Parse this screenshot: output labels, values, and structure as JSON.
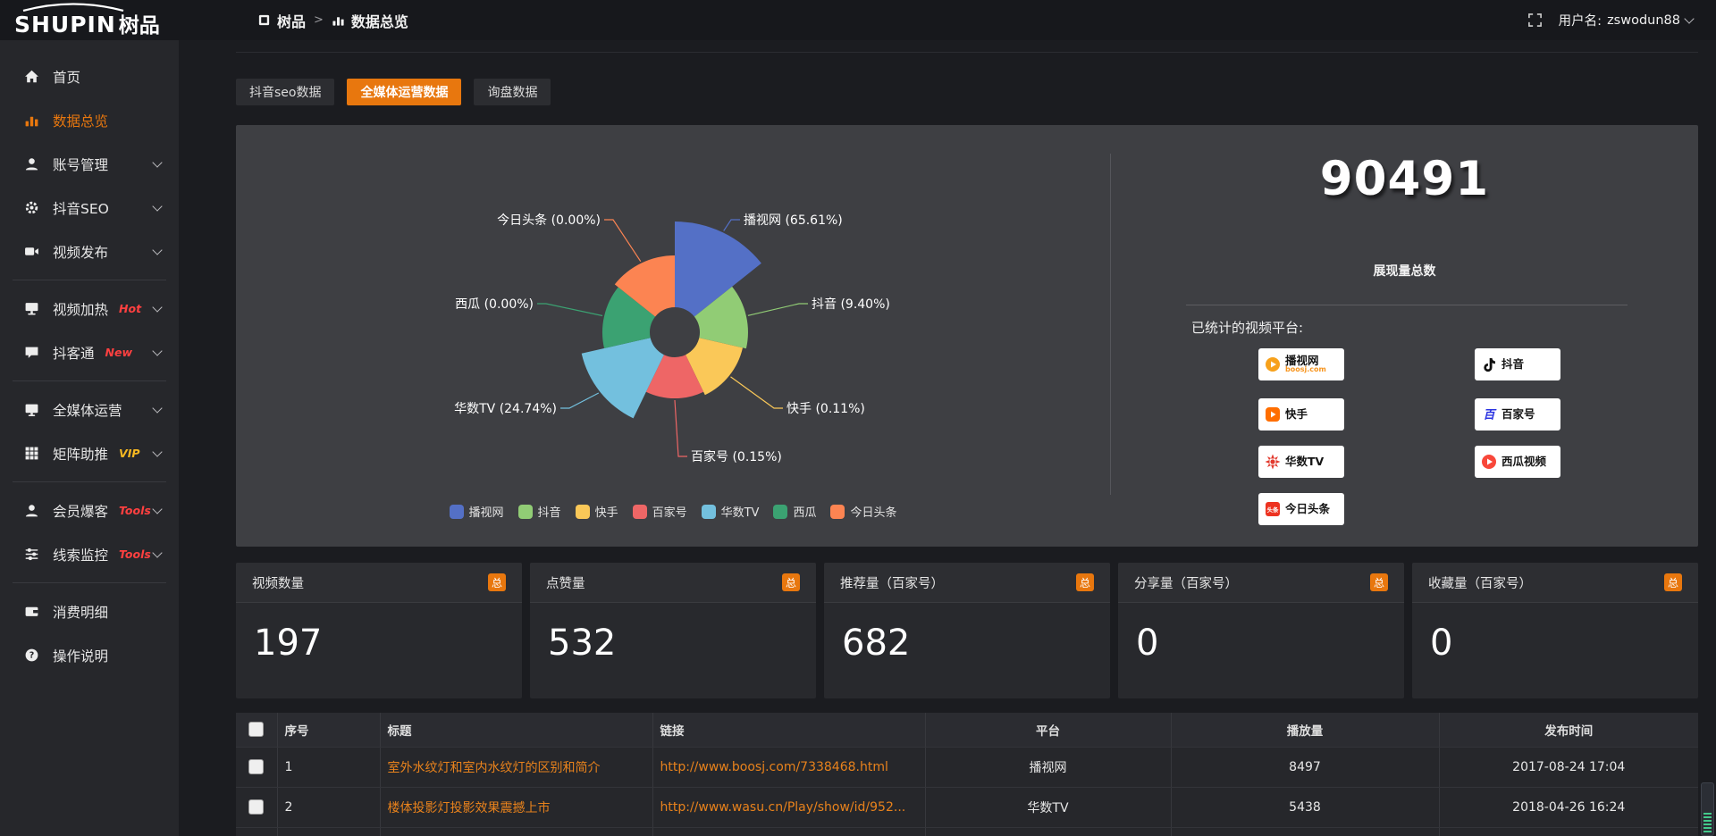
{
  "brand": {
    "logo_en": "SHUPIN",
    "logo_cn": "树品"
  },
  "header": {
    "breadcrumb": [
      {
        "label": "树品",
        "icon": "doc"
      },
      {
        "label": "数据总览",
        "icon": "chart"
      }
    ],
    "separator": ">",
    "username_label": "用户名:",
    "username": "zswodun88"
  },
  "sidebar": {
    "items": [
      {
        "label": "首页",
        "icon": "home"
      },
      {
        "label": "数据总览",
        "icon": "chart",
        "active": true
      },
      {
        "label": "账号管理",
        "icon": "user",
        "chevron": true
      },
      {
        "label": "抖音SEO",
        "icon": "gear",
        "chevron": true
      },
      {
        "label": "视频发布",
        "icon": "video",
        "chevron": true
      },
      {
        "divider": true
      },
      {
        "label": "视频加热",
        "icon": "heat",
        "badge": "Hot",
        "badge_color": "#ff4040",
        "chevron": true
      },
      {
        "label": "抖客通",
        "icon": "chat",
        "badge": "New",
        "badge_color": "#ff4040",
        "chevron": true
      },
      {
        "divider": true
      },
      {
        "label": "全媒体运营",
        "icon": "monitor",
        "chevron": true
      },
      {
        "label": "矩阵助推",
        "icon": "grid",
        "badge": "VIP",
        "badge_color": "#f6b821",
        "chevron": true
      },
      {
        "divider": true
      },
      {
        "label": "会员爆客",
        "icon": "user",
        "badge": "Tools",
        "badge_color": "#ff4040",
        "chevron": true
      },
      {
        "label": "线索监控",
        "icon": "sliders",
        "badge": "Tools",
        "badge_color": "#ff4040",
        "chevron": true
      },
      {
        "divider": true
      },
      {
        "label": "消费明细",
        "icon": "wallet"
      },
      {
        "label": "操作说明",
        "icon": "help"
      }
    ]
  },
  "tabs": [
    {
      "label": "抖音seo数据",
      "active": false
    },
    {
      "label": "全媒体运营数据",
      "active": true
    },
    {
      "label": "询盘数据",
      "active": false
    }
  ],
  "chart_data": {
    "type": "pie",
    "variant": "nightingale-rose-donut",
    "series": [
      {
        "name": "播视网",
        "pct": "65.61"
      },
      {
        "name": "抖音",
        "pct": "9.40"
      },
      {
        "name": "快手",
        "pct": "0.11"
      },
      {
        "name": "百家号",
        "pct": "0.15"
      },
      {
        "name": "华数TV",
        "pct": "24.74"
      },
      {
        "name": "西瓜",
        "pct": "0.00"
      },
      {
        "name": "今日头条",
        "pct": "0.00"
      }
    ],
    "colors": [
      "#5470c6",
      "#91cc75",
      "#fac858",
      "#ee6666",
      "#73c0de",
      "#3ba272",
      "#fc8452"
    ],
    "label_format": "{name} ({pct}%)",
    "legend": [
      "播视网",
      "抖音",
      "快手",
      "百家号",
      "华数TV",
      "西瓜",
      "今日头条"
    ],
    "legend_position": "bottom"
  },
  "summary": {
    "total_value": "90491",
    "total_label": "展现量总数",
    "platforms_label": "已统计的视频平台:",
    "platforms": [
      {
        "name": "播视网",
        "sub": "boosj.com",
        "logo": "boosj"
      },
      {
        "name": "快手",
        "logo": "kuaishou"
      },
      {
        "name": "华数TV",
        "logo": "wasu"
      },
      {
        "name": "今日头条",
        "logo": "toutiao"
      },
      {
        "name": "抖音",
        "logo": "douyin"
      },
      {
        "name": "百家号",
        "logo": "baijia"
      },
      {
        "name": "西瓜视频",
        "logo": "xigua"
      }
    ]
  },
  "stats": [
    {
      "title": "视频数量",
      "badge": "总",
      "value": "197"
    },
    {
      "title": "点赞量",
      "badge": "总",
      "value": "532"
    },
    {
      "title": "推荐量（百家号）",
      "badge": "总",
      "value": "682"
    },
    {
      "title": "分享量（百家号）",
      "badge": "总",
      "value": "0"
    },
    {
      "title": "收藏量（百家号）",
      "badge": "总",
      "value": "0"
    }
  ],
  "table": {
    "columns": [
      "序号",
      "标题",
      "链接",
      "平台",
      "播放量",
      "发布时间"
    ],
    "rows": [
      {
        "index": "1",
        "title": "室外水纹灯和室内水纹灯的区别和简介",
        "link": "http://www.boosj.com/7338468.html",
        "platform": "播视网",
        "views": "8497",
        "time": "2017-08-24 17:04"
      },
      {
        "index": "2",
        "title": "楼体投影灯投影效果震撼上市",
        "link": "http://www.wasu.cn/Play/show/id/952...",
        "platform": "华数TV",
        "views": "5438",
        "time": "2018-04-26 16:24"
      },
      {
        "index": "",
        "title": "",
        "link": "",
        "platform": "",
        "views": "",
        "time": ""
      }
    ]
  }
}
